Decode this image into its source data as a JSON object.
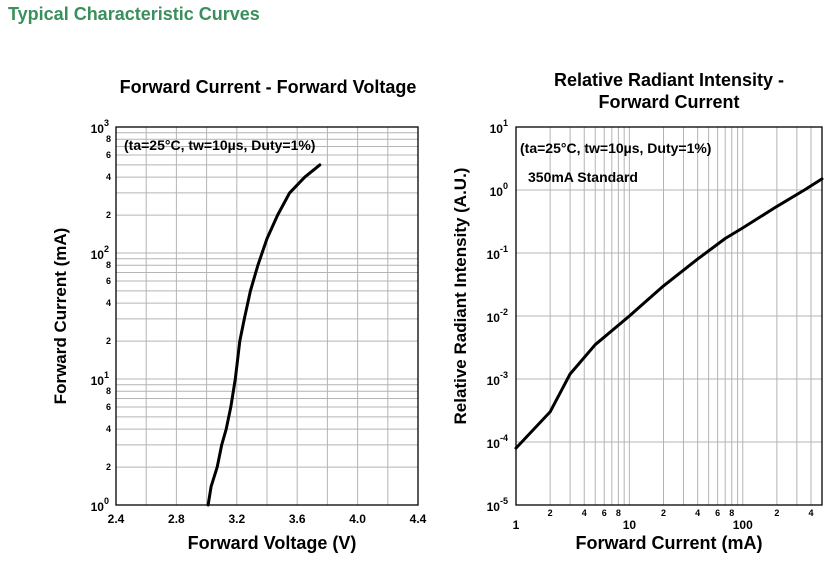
{
  "header": {
    "title": "Typical Characteristic Curves"
  },
  "chart_data": [
    {
      "type": "line",
      "title": "Forward Current - Forward Voltage",
      "xlabel": "Forward Voltage (V)",
      "ylabel": "Forward Current (mA)",
      "annotation": "(ta=25°C, tw=10µs, Duty=1%)",
      "x_scale": "linear",
      "y_scale": "log",
      "xlim": [
        2.4,
        4.4
      ],
      "ylim": [
        1,
        1000
      ],
      "grid": true,
      "x_ticks": [
        "2.4",
        "2.8",
        "3.2",
        "3.6",
        "4.0",
        "4.4"
      ],
      "y_major_ticks": [
        {
          "base": "10",
          "exp": "0"
        },
        {
          "base": "10",
          "exp": "1"
        },
        {
          "base": "10",
          "exp": "2"
        },
        {
          "base": "10",
          "exp": "3"
        }
      ],
      "y_minor_labels": [
        "2",
        "4",
        "6",
        "8"
      ],
      "series": [
        {
          "x": [
            3.01,
            3.03,
            3.07,
            3.1,
            3.13,
            3.16,
            3.19,
            3.22,
            3.25,
            3.29,
            3.34,
            3.4,
            3.47,
            3.55,
            3.65,
            3.75
          ],
          "y": [
            1,
            1.4,
            2,
            3,
            4,
            6,
            10,
            20,
            30,
            50,
            80,
            130,
            200,
            300,
            400,
            500
          ]
        }
      ]
    },
    {
      "type": "line",
      "title": "Relative Radiant Intensity -\nForward Current",
      "xlabel": "Forward Current (mA)",
      "ylabel": "Relative Radiant Intensity (A.U.)",
      "annotation": "(ta=25°C, tw=10µs, Duty=1%)",
      "annotation2": "350mA Standard",
      "x_scale": "log",
      "y_scale": "log",
      "xlim": [
        1,
        500
      ],
      "ylim": [
        1e-05,
        10
      ],
      "grid": true,
      "x_major_ticks": [
        "1",
        "10",
        "100"
      ],
      "x_minor_labels": [
        "2",
        "4",
        "6",
        "8"
      ],
      "y_major_ticks": [
        {
          "base": "10",
          "exp": "1"
        },
        {
          "base": "10",
          "exp": "0"
        },
        {
          "base": "10",
          "exp": "-1"
        },
        {
          "base": "10",
          "exp": "-2"
        },
        {
          "base": "10",
          "exp": "-3"
        },
        {
          "base": "10",
          "exp": "-4"
        },
        {
          "base": "10",
          "exp": "-5"
        }
      ],
      "series": [
        {
          "x": [
            1,
            2,
            3,
            5,
            10,
            20,
            40,
            70,
            100,
            200,
            350,
            500
          ],
          "y": [
            8e-05,
            0.0003,
            0.0012,
            0.0035,
            0.01,
            0.03,
            0.08,
            0.17,
            0.25,
            0.55,
            1.0,
            1.5
          ]
        }
      ]
    }
  ]
}
